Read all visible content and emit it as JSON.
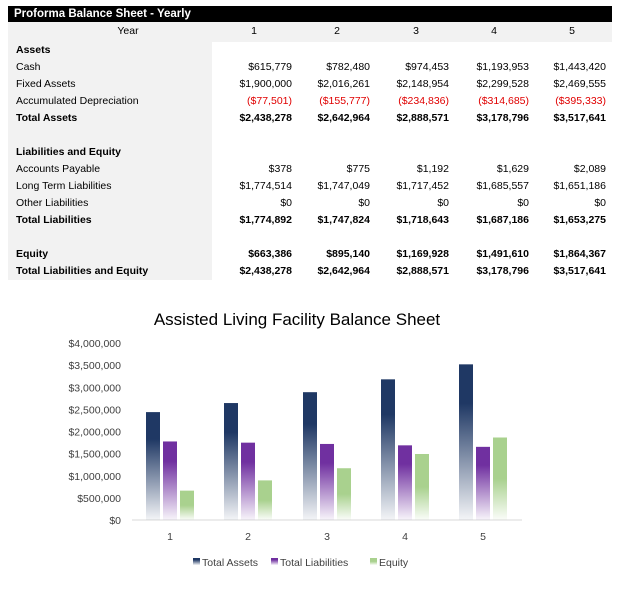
{
  "sheet": {
    "title": "Proforma Balance Sheet - Yearly",
    "year_label": "Year",
    "years": [
      "1",
      "2",
      "3",
      "4",
      "5"
    ],
    "rows": [
      {
        "label": "Assets",
        "values": [],
        "style": "bold"
      },
      {
        "label": "Cash",
        "values": [
          "$615,779",
          "$782,480",
          "$974,453",
          "$1,193,953",
          "$1,443,420"
        ]
      },
      {
        "label": "Fixed Assets",
        "values": [
          "$1,900,000",
          "$2,016,261",
          "$2,148,954",
          "$2,299,528",
          "$2,469,555"
        ]
      },
      {
        "label": "Accumulated Depreciation",
        "values": [
          "($77,501)",
          "($155,777)",
          "($234,836)",
          "($314,685)",
          "($395,333)"
        ],
        "style": "neg"
      },
      {
        "label": "Total Assets",
        "values": [
          "$2,438,278",
          "$2,642,964",
          "$2,888,571",
          "$3,178,796",
          "$3,517,641"
        ],
        "style": "bold"
      },
      {
        "label": "",
        "values": []
      },
      {
        "label": "Liabilities and Equity",
        "values": [],
        "style": "bold"
      },
      {
        "label": "Accounts Payable",
        "values": [
          "$378",
          "$775",
          "$1,192",
          "$1,629",
          "$2,089"
        ]
      },
      {
        "label": "Long Term Liabilities",
        "values": [
          "$1,774,514",
          "$1,747,049",
          "$1,717,452",
          "$1,685,557",
          "$1,651,186"
        ]
      },
      {
        "label": "Other Liabilities",
        "values": [
          "$0",
          "$0",
          "$0",
          "$0",
          "$0"
        ]
      },
      {
        "label": "Total Liabilities",
        "values": [
          "$1,774,892",
          "$1,747,824",
          "$1,718,643",
          "$1,687,186",
          "$1,653,275"
        ],
        "style": "bold"
      },
      {
        "label": "",
        "values": []
      },
      {
        "label": "Equity",
        "values": [
          "$663,386",
          "$895,140",
          "$1,169,928",
          "$1,491,610",
          "$1,864,367"
        ],
        "style": "bold"
      },
      {
        "label": "Total Liabilities and Equity",
        "values": [
          "$2,438,278",
          "$2,642,964",
          "$2,888,571",
          "$3,178,796",
          "$3,517,641"
        ],
        "style": "bold"
      }
    ]
  },
  "chart_data": {
    "type": "bar",
    "title": "Assisted Living Facility Balance Sheet",
    "categories": [
      "1",
      "2",
      "3",
      "4",
      "5"
    ],
    "series": [
      {
        "name": "Total Assets",
        "values": [
          2438278,
          2642964,
          2888571,
          3178796,
          3517641
        ],
        "color": "#1f3864"
      },
      {
        "name": "Total Liabilities",
        "values": [
          1774892,
          1747824,
          1718643,
          1687186,
          1653275
        ],
        "color": "#7030a0"
      },
      {
        "name": "Equity",
        "values": [
          663386,
          895140,
          1169928,
          1491610,
          1864367
        ],
        "color": "#a9d18e"
      }
    ],
    "ylim": [
      0,
      4000000
    ],
    "yticks": [
      "$0",
      "$500,000",
      "$1,000,000",
      "$1,500,000",
      "$2,000,000",
      "$2,500,000",
      "$3,000,000",
      "$3,500,000",
      "$4,000,000"
    ],
    "grid": false,
    "legend": "bottom"
  }
}
